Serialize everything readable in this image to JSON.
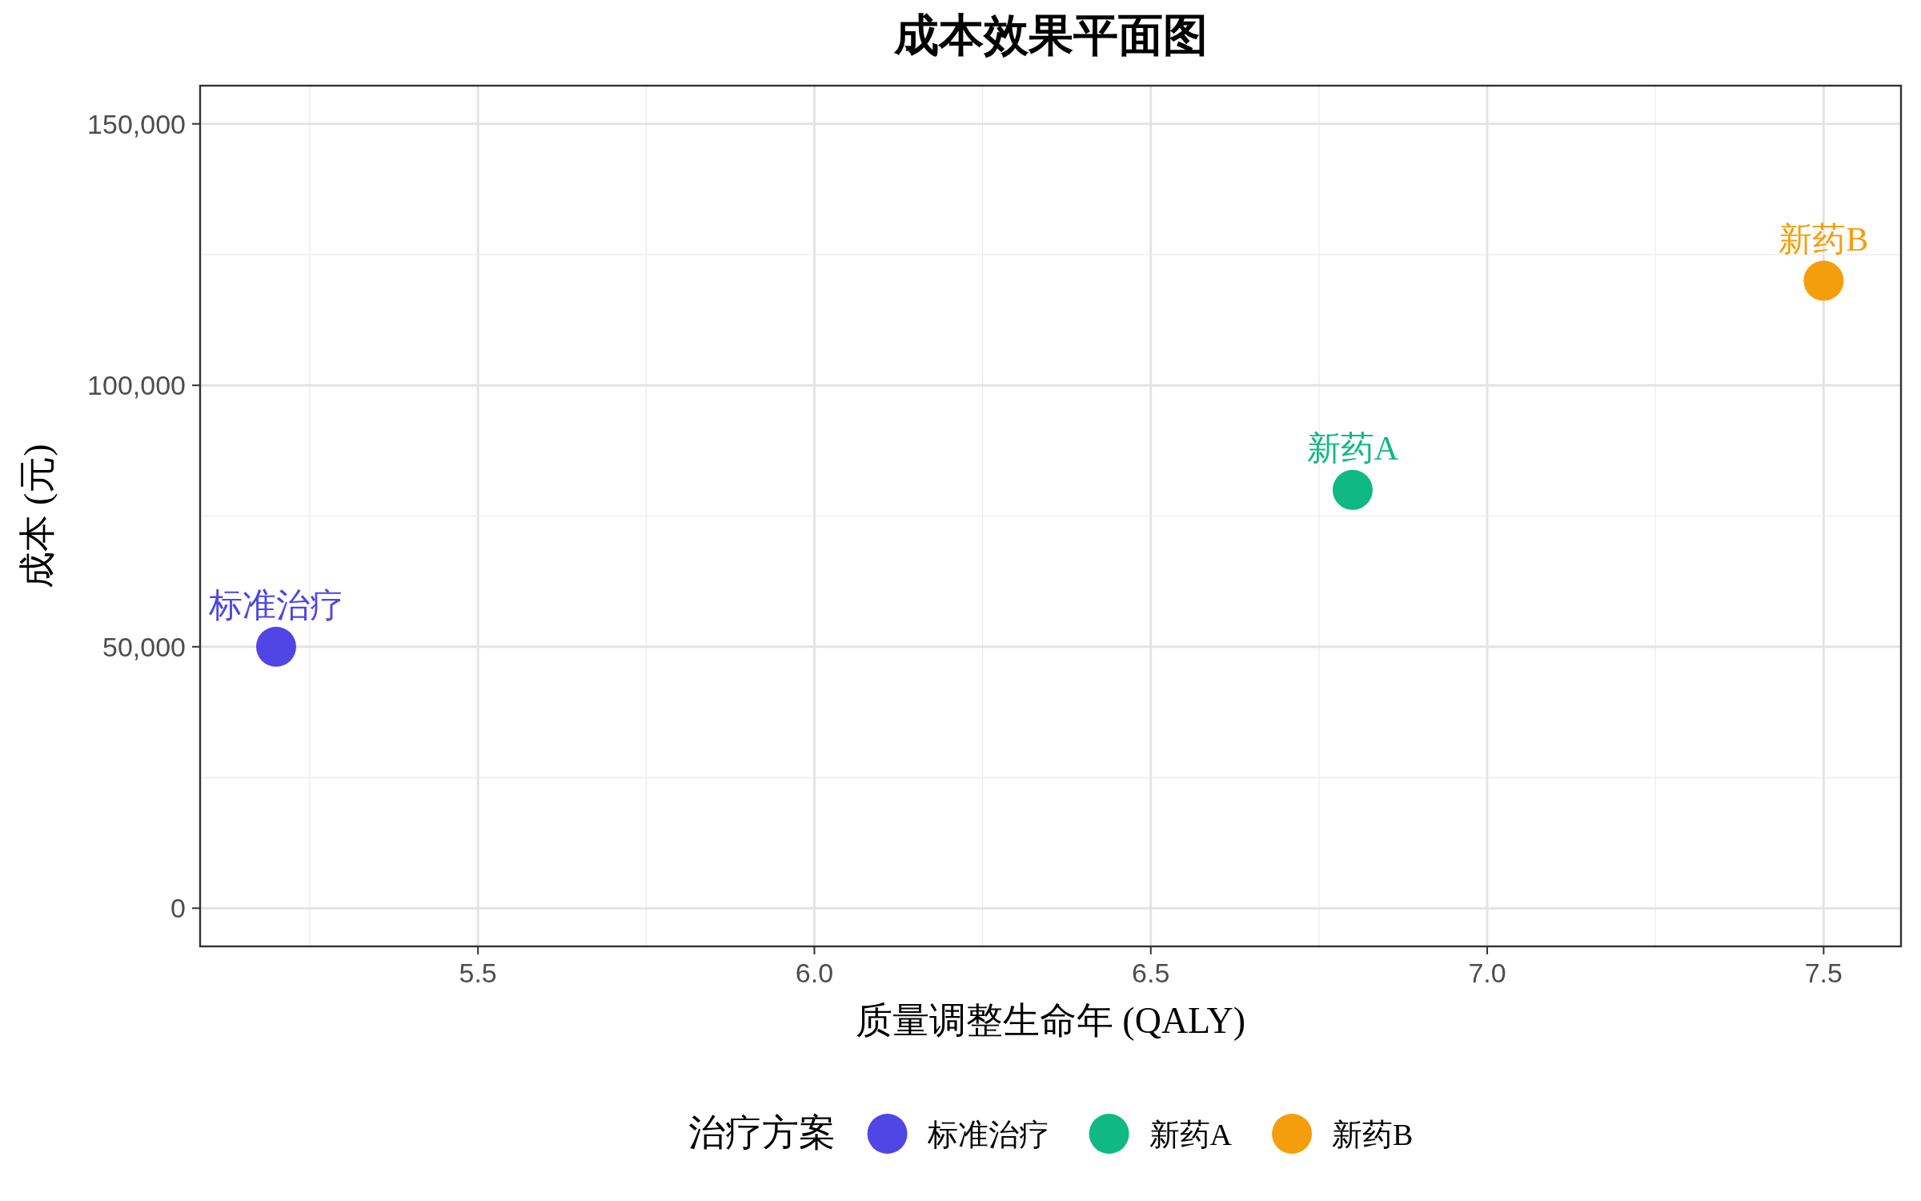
{
  "chart_data": {
    "type": "scatter",
    "title": "成本效果平面图",
    "xlabel": "质量调整生命年 (QALY)",
    "ylabel": "成本 (元)",
    "legend_title": "治疗方案",
    "xlim": [
      5.087,
      7.615
    ],
    "ylim": [
      -7300,
      157300
    ],
    "xticks": [
      5.5,
      {
        "value": 6,
        "label": "6.0"
      },
      6.5,
      {
        "value": 7,
        "label": "7.0"
      },
      7.5
    ],
    "yticks": [
      0,
      {
        "value": 50000,
        "label": "50,000"
      },
      {
        "value": 100000,
        "label": "100,000"
      },
      {
        "value": 150000,
        "label": "150,000"
      }
    ],
    "grid": true,
    "legend": "bottom",
    "marker": "circle",
    "series": [
      {
        "name": "标准治疗",
        "color": "#4f46e5",
        "x": [
          5.2
        ],
        "values": [
          50000
        ]
      },
      {
        "name": "新药A",
        "color": "#10b981",
        "x": [
          6.8
        ],
        "values": [
          80000
        ]
      },
      {
        "name": "新药B",
        "color": "#f59e0b",
        "x": [
          7.5
        ],
        "values": [
          120000
        ]
      }
    ]
  }
}
